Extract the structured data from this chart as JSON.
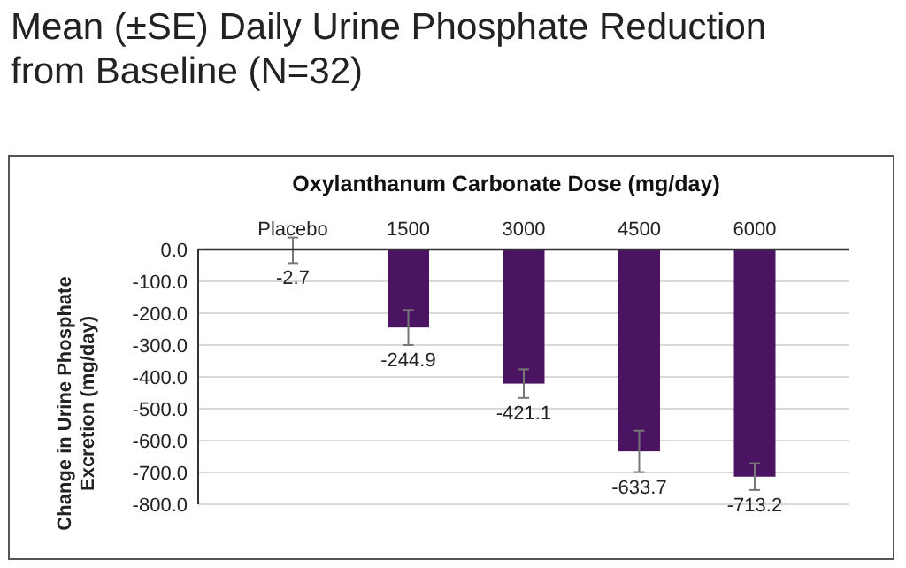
{
  "chart_data": {
    "type": "bar",
    "title": "Mean (±SE) Daily Urine Phosphate Reduction from Baseline (N=32)",
    "xlabel": "Oxylanthanum Carbonate Dose (mg/day)",
    "ylabel": "Change in Urine Phosphate Excretion (mg/day)",
    "categories": [
      "Placebo",
      "1500",
      "3000",
      "4500",
      "6000"
    ],
    "values": [
      -2.7,
      -244.9,
      -421.1,
      -633.7,
      -713.2
    ],
    "errors": [
      40,
      55,
      45,
      65,
      42
    ],
    "color": "#4b1462",
    "data_labels": true,
    "ylim": [
      -800,
      0
    ],
    "yticks": [
      {
        "value": 0,
        "label": "0.0"
      },
      {
        "value": -100,
        "label": "-100.0"
      },
      {
        "value": -200,
        "label": "-200.0"
      },
      {
        "value": -300,
        "label": "-300.0"
      },
      {
        "value": -400,
        "label": "-400.0"
      },
      {
        "value": -500,
        "label": "-500.0"
      },
      {
        "value": -600,
        "label": "-600.0"
      },
      {
        "value": -700,
        "label": "-700.0"
      },
      {
        "value": -800,
        "label": "-800.0"
      }
    ],
    "grid": "y"
  }
}
